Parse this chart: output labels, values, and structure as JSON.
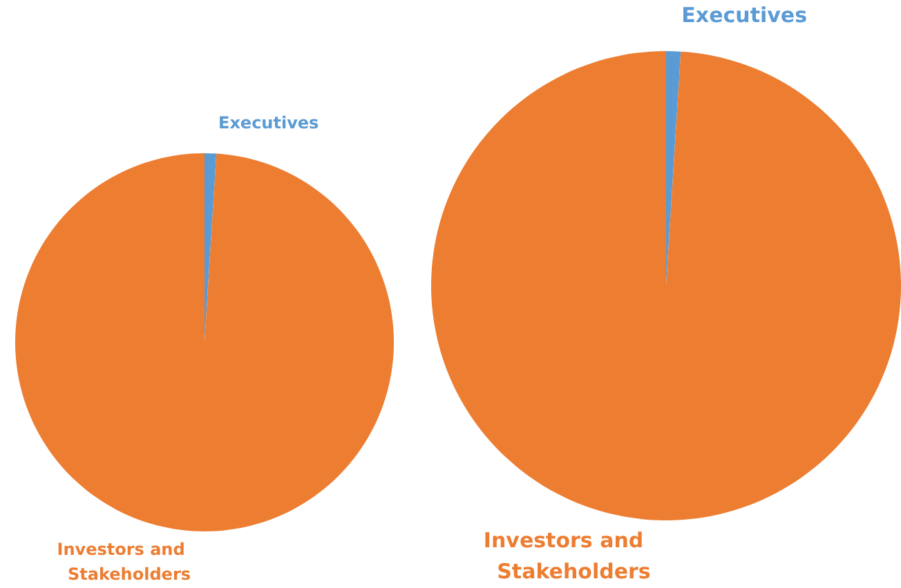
{
  "chart_data": [
    {
      "type": "pie",
      "categories": [
        "Executives",
        "Investors and Stakeholders"
      ],
      "values": [
        1,
        99
      ],
      "colors": [
        "#5b9bd5",
        "#ed7d31"
      ]
    },
    {
      "type": "pie",
      "categories": [
        "Executives",
        "Investors and Stakeholders"
      ],
      "values": [
        1,
        99
      ],
      "colors": [
        "#5b9bd5",
        "#ed7d31"
      ]
    }
  ]
}
